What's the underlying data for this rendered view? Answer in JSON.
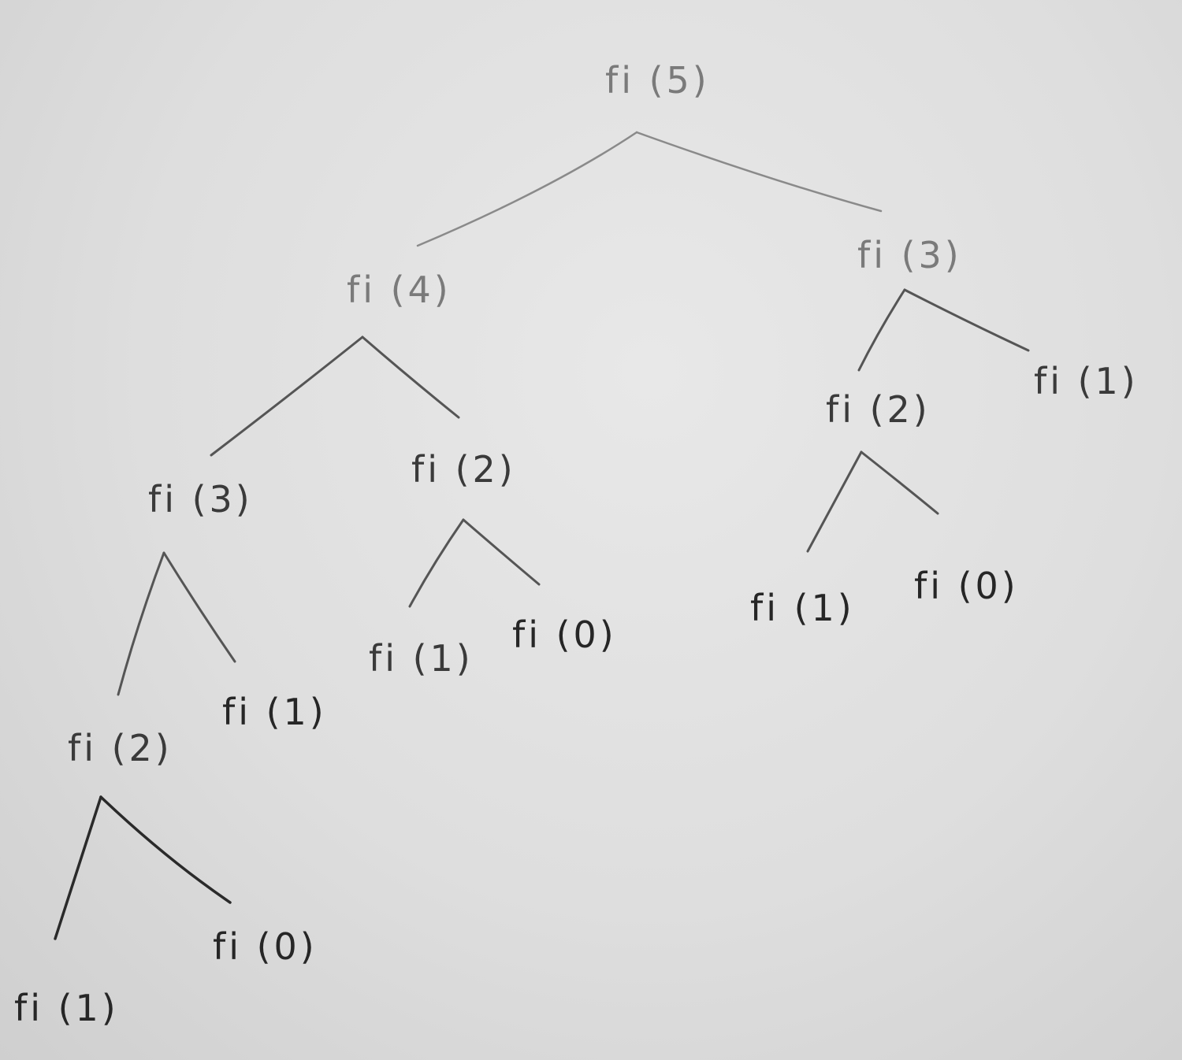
{
  "nodes": [
    {
      "id": "n-5",
      "label": "fi (5)"
    },
    {
      "id": "n-4",
      "label": "fi (4)"
    },
    {
      "id": "n-3r",
      "label": "fi (3)"
    },
    {
      "id": "n-3l",
      "label": "fi (3)"
    },
    {
      "id": "n-2m",
      "label": "fi (2)"
    },
    {
      "id": "n-2r",
      "label": "fi (2)"
    },
    {
      "id": "n-1r",
      "label": "fi (1)"
    },
    {
      "id": "n-2l",
      "label": "fi (2)"
    },
    {
      "id": "n-1l",
      "label": "fi (1)"
    },
    {
      "id": "n-1m",
      "label": "fi (1)"
    },
    {
      "id": "n-0m",
      "label": "fi (0)"
    },
    {
      "id": "n-1rr",
      "label": "fi (1)"
    },
    {
      "id": "n-0rr",
      "label": "fi (0)"
    },
    {
      "id": "n-1ll",
      "label": "fi (1)"
    },
    {
      "id": "n-0ll",
      "label": "fi (0)"
    }
  ]
}
